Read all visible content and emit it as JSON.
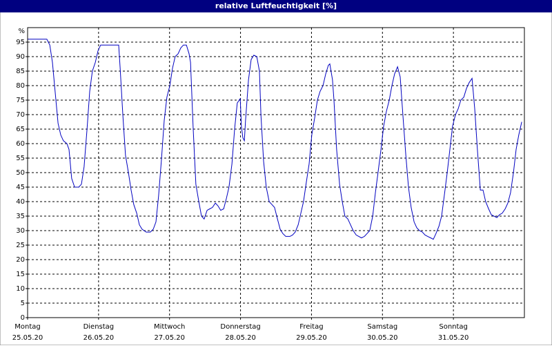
{
  "chart_data": {
    "type": "line",
    "title": "relative Luftfeuchtigkeit [%]",
    "y_label": "%",
    "xlim": [
      0,
      168
    ],
    "xticks": [
      {
        "value": 0,
        "label": "Montag"
      },
      {
        "value": 24,
        "label": "Dienstag"
      },
      {
        "value": 48,
        "label": "Mittwoch"
      },
      {
        "value": 72,
        "label": "Donnerstag"
      },
      {
        "value": 96,
        "label": "Freitag"
      },
      {
        "value": 120,
        "label": "Samstag"
      },
      {
        "value": 144,
        "label": "Sonntag"
      }
    ],
    "xtick_dates": [
      "25.05.20",
      "26.05.20",
      "27.05.20",
      "28.05.20",
      "29.05.20",
      "30.05.20",
      "31.05.20"
    ],
    "ylim": [
      0,
      100
    ],
    "yticks": [
      0,
      5,
      10,
      15,
      20,
      25,
      30,
      35,
      40,
      45,
      50,
      55,
      60,
      65,
      70,
      75,
      80,
      85,
      90,
      95
    ],
    "grid": true,
    "series": [
      {
        "color": "#0000c0",
        "x": [
          0,
          6.5,
          7.5,
          8.4,
          9.3,
          10.3,
          11.2,
          12.1,
          13.3,
          14,
          14.9,
          15.9,
          17.3,
          18.2,
          19.1,
          20.1,
          21,
          21.9,
          22.9,
          23.8,
          24.7,
          25.7,
          30.8,
          31.3,
          32.2,
          33.1,
          34.1,
          35,
          35.9,
          36.9,
          37.8,
          38.7,
          40.1,
          41.5,
          42.5,
          43.4,
          44.3,
          45.3,
          46.2,
          47.1,
          48.1,
          49,
          49.9,
          50.9,
          51.8,
          52.7,
          53.7,
          54.6,
          55.1,
          56,
          56.9,
          57.9,
          58.8,
          59.7,
          60.7,
          61.6,
          62.5,
          63.5,
          64.4,
          65.3,
          66.3,
          67.2,
          68.1,
          69.1,
          70,
          70.9,
          71.9,
          72.3,
          72.8,
          73.3,
          73.7,
          74.7,
          75.6,
          76.5,
          77.5,
          78.4,
          78.9,
          79.8,
          80.7,
          81.7,
          82.6,
          83.5,
          84.5,
          85.4,
          86.3,
          87.3,
          88.7,
          89.6,
          90.5,
          91.5,
          92.4,
          93.3,
          94.3,
          95.2,
          96.1,
          97.1,
          98,
          98.9,
          99.9,
          100.8,
          101.7,
          102.2,
          103.1,
          103.6,
          104.5,
          105.5,
          106.4,
          107.3,
          108.3,
          109.2,
          110.1,
          111.1,
          112,
          112.9,
          113.9,
          114.8,
          115.7,
          116.7,
          117.6,
          118.5,
          119.5,
          120.4,
          121.3,
          122.3,
          123.2,
          124.1,
          125.1,
          126,
          126.9,
          127.9,
          128.8,
          129.7,
          130.7,
          131.6,
          132.5,
          133.5,
          134.4,
          135.3,
          136.3,
          137.2,
          138.1,
          139.1,
          140,
          140.9,
          141.9,
          142.8,
          143.7,
          144.7,
          145.6,
          146.5,
          147.5,
          148.4,
          149.3,
          150.3,
          151.2,
          152.1,
          153.1,
          154,
          154.9,
          155.9,
          156.8,
          157.7,
          158.7,
          159.6,
          160.5,
          161.5,
          162.4,
          163.3,
          164.3,
          165.2,
          166.1,
          167.1
        ],
        "values": [
          96,
          96,
          94,
          88,
          78,
          67,
          63,
          61,
          60,
          58,
          48,
          45,
          45,
          46,
          52,
          65,
          78,
          85,
          88,
          92,
          94,
          94,
          94,
          86,
          70,
          56,
          50,
          44,
          39,
          36,
          32,
          30.5,
          29.5,
          29.5,
          30.5,
          33,
          42,
          55,
          68,
          76,
          80,
          86,
          90,
          91,
          93,
          94,
          94,
          91,
          88,
          65,
          46,
          40,
          35,
          34,
          37,
          37.5,
          38,
          39.5,
          38.5,
          37,
          37.5,
          41,
          45,
          53,
          65,
          74,
          75.5,
          66,
          62,
          61,
          68,
          82,
          89,
          90.5,
          90,
          85,
          70,
          54,
          45,
          40,
          39,
          38,
          34,
          30.5,
          29,
          28,
          28,
          28.5,
          29.5,
          32,
          36,
          40,
          47,
          53,
          63,
          69,
          75,
          78,
          80,
          84,
          87,
          87.5,
          82,
          75,
          58,
          46,
          40,
          35,
          34,
          32,
          30,
          28.5,
          28,
          27.5,
          28,
          29,
          30,
          35,
          43,
          50,
          58,
          66,
          71,
          75,
          80,
          84,
          86.5,
          83,
          70,
          56,
          45,
          38,
          33,
          31,
          30,
          29.5,
          28.5,
          28,
          27.5,
          27,
          29,
          31.5,
          35,
          42,
          50,
          58,
          66,
          70,
          72,
          75,
          76,
          79,
          81,
          82.5,
          72,
          58,
          44,
          44,
          40,
          37.5,
          35.5,
          35,
          34.5,
          35.5,
          36,
          37.5,
          39.5,
          43,
          50,
          58,
          63,
          67.5
        ]
      }
    ]
  }
}
